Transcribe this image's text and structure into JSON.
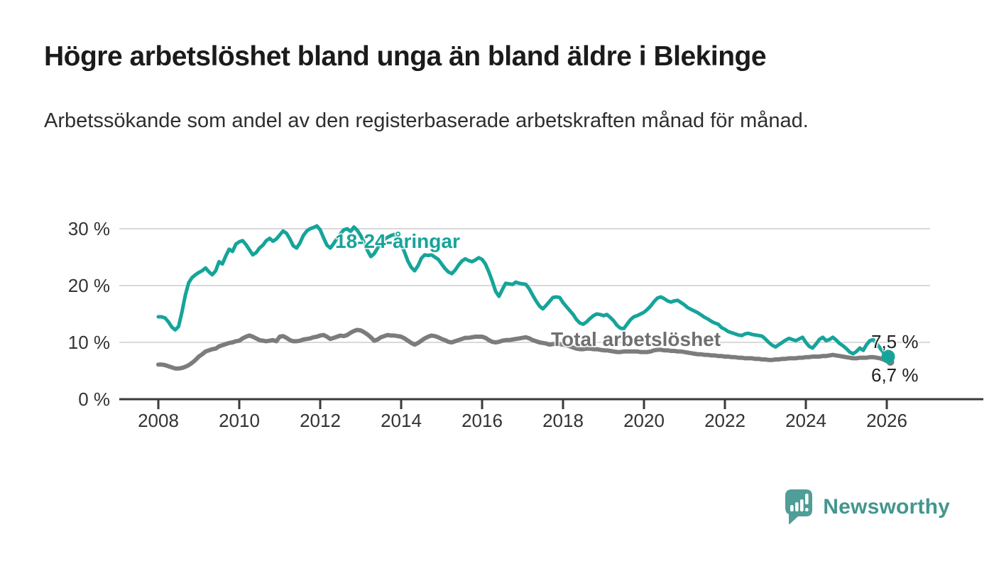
{
  "title": "Högre arbetslöshet bland unga än bland äldre i Blekinge",
  "subtitle": "Arbetssökande som andel av den registerbaserade arbetskraften månad för månad.",
  "branding": {
    "name": "Newsworthy",
    "logo_icon_color": "#4F9E97",
    "logo_text_color": "#43968E"
  },
  "colors": {
    "accent_teal": "#16A49A",
    "line_gray": "#7C7C7C",
    "label_gray": "#6F6F6F",
    "grid": "#D9D9D9",
    "axis": "#3A3A3A",
    "axis_text": "#333333",
    "end_label_text": "#1F1F1F"
  },
  "chart_data": {
    "type": "line",
    "title": "Högre arbetslöshet bland unga än bland äldre i Blekinge",
    "subtitle": "Arbetssökande som andel av den registerbaserade arbetskraften månad för månad.",
    "x_start_year": 2008,
    "months_per_step": 1,
    "x_ticks": [
      2008,
      2010,
      2012,
      2014,
      2016,
      2018,
      2020,
      2022,
      2024,
      2026
    ],
    "x_tick_labels": [
      "2008",
      "2010",
      "2012",
      "2014",
      "2016",
      "2018",
      "2020",
      "2022",
      "2024",
      "2026"
    ],
    "y_ticks": [
      0,
      10,
      20,
      30
    ],
    "y_tick_labels": [
      "0 %",
      "10 %",
      "20 %",
      "30 %"
    ],
    "ylim": [
      0,
      32
    ],
    "grid": "horizontal",
    "legend_position": "inline-labels",
    "series": [
      {
        "name": "18-24-åringar",
        "color": "#16A49A",
        "stroke_width": 5,
        "end_label": "7,5 %",
        "final_value": 7.5,
        "end_dot": true,
        "values": [
          14.5,
          14.5,
          14.3,
          13.6,
          12.7,
          12.2,
          12.8,
          15.3,
          18.3,
          20.5,
          21.4,
          21.9,
          22.3,
          22.6,
          23.1,
          22.4,
          21.9,
          22.6,
          24.2,
          23.8,
          25.2,
          26.4,
          26.0,
          27.3,
          27.7,
          27.9,
          27.2,
          26.3,
          25.4,
          25.8,
          26.6,
          27.1,
          27.9,
          28.3,
          27.8,
          28.2,
          28.9,
          29.6,
          29.2,
          28.2,
          27.0,
          26.6,
          27.5,
          28.8,
          29.6,
          30.0,
          30.2,
          30.5,
          29.8,
          28.4,
          27.1,
          26.6,
          27.4,
          28.3,
          29.1,
          29.8,
          30.0,
          29.5,
          30.3,
          29.7,
          28.8,
          27.6,
          26.2,
          25.1,
          25.6,
          26.6,
          27.4,
          28.1,
          28.5,
          28.8,
          29.0,
          28.4,
          27.3,
          25.9,
          24.3,
          23.2,
          22.6,
          23.5,
          24.8,
          25.4,
          25.3,
          25.4,
          25.0,
          24.6,
          23.8,
          23.0,
          22.4,
          22.1,
          22.7,
          23.6,
          24.3,
          24.7,
          24.4,
          24.2,
          24.5,
          24.9,
          24.6,
          23.8,
          22.4,
          20.8,
          19.0,
          18.1,
          19.3,
          20.4,
          20.3,
          20.2,
          20.6,
          20.4,
          20.3,
          20.2,
          19.4,
          18.3,
          17.3,
          16.4,
          15.9,
          16.5,
          17.2,
          17.9,
          18.0,
          17.9,
          17.0,
          16.3,
          15.6,
          14.9,
          14.0,
          13.4,
          13.2,
          13.6,
          14.2,
          14.7,
          15.0,
          14.9,
          14.7,
          14.9,
          14.4,
          13.8,
          13.0,
          12.5,
          12.4,
          13.2,
          14.0,
          14.5,
          14.7,
          15.0,
          15.3,
          15.8,
          16.4,
          17.2,
          17.8,
          18.0,
          17.7,
          17.3,
          17.1,
          17.3,
          17.4,
          17.0,
          16.6,
          16.1,
          15.8,
          15.5,
          15.2,
          14.8,
          14.4,
          14.1,
          13.7,
          13.4,
          13.2,
          12.6,
          12.3,
          11.9,
          11.7,
          11.5,
          11.3,
          11.2,
          11.5,
          11.6,
          11.4,
          11.3,
          11.2,
          11.1,
          10.6,
          10.0,
          9.5,
          9.2,
          9.6,
          10.0,
          10.4,
          10.7,
          10.5,
          10.3,
          10.6,
          10.9,
          10.0,
          9.3,
          9.0,
          9.7,
          10.5,
          10.9,
          10.3,
          10.5,
          10.9,
          10.4,
          9.8,
          9.4,
          8.9,
          8.3,
          8.0,
          8.4,
          9.0,
          8.6,
          9.6,
          10.3,
          10.5,
          9.8,
          9.0,
          8.2,
          7.5
        ]
      },
      {
        "name": "Total arbetslöshet",
        "color": "#7C7C7C",
        "stroke_width": 6,
        "end_label": "6,7 %",
        "final_value": 6.7,
        "end_dot": false,
        "values": [
          6.1,
          6.1,
          6.0,
          5.8,
          5.6,
          5.4,
          5.4,
          5.5,
          5.7,
          6.0,
          6.4,
          6.9,
          7.5,
          7.9,
          8.4,
          8.6,
          8.8,
          8.9,
          9.3,
          9.5,
          9.7,
          9.9,
          10.0,
          10.2,
          10.3,
          10.7,
          11.0,
          11.2,
          11.0,
          10.7,
          10.4,
          10.3,
          10.2,
          10.3,
          10.4,
          10.2,
          11.0,
          11.1,
          10.8,
          10.4,
          10.2,
          10.2,
          10.3,
          10.5,
          10.6,
          10.7,
          10.9,
          11.0,
          11.2,
          11.3,
          11.0,
          10.6,
          10.8,
          11.0,
          11.2,
          11.1,
          11.3,
          11.7,
          12.0,
          12.2,
          12.1,
          11.8,
          11.4,
          10.9,
          10.3,
          10.5,
          10.9,
          11.1,
          11.3,
          11.2,
          11.2,
          11.1,
          11.0,
          10.7,
          10.3,
          9.9,
          9.6,
          9.9,
          10.3,
          10.7,
          11.0,
          11.2,
          11.1,
          10.9,
          10.6,
          10.4,
          10.1,
          10.0,
          10.2,
          10.4,
          10.6,
          10.8,
          10.8,
          10.9,
          11.0,
          11.0,
          11.0,
          10.8,
          10.4,
          10.1,
          10.0,
          10.1,
          10.3,
          10.4,
          10.4,
          10.5,
          10.6,
          10.7,
          10.8,
          10.9,
          10.7,
          10.4,
          10.2,
          10.0,
          9.9,
          9.8,
          9.6,
          9.7,
          9.8,
          9.7,
          9.6,
          9.5,
          9.3,
          9.1,
          8.9,
          8.8,
          8.8,
          8.9,
          8.9,
          8.8,
          8.8,
          8.7,
          8.6,
          8.6,
          8.5,
          8.4,
          8.3,
          8.3,
          8.4,
          8.4,
          8.4,
          8.4,
          8.4,
          8.3,
          8.3,
          8.3,
          8.4,
          8.6,
          8.7,
          8.7,
          8.6,
          8.6,
          8.5,
          8.5,
          8.4,
          8.4,
          8.3,
          8.2,
          8.1,
          8.0,
          7.9,
          7.9,
          7.8,
          7.8,
          7.7,
          7.7,
          7.6,
          7.6,
          7.5,
          7.5,
          7.4,
          7.4,
          7.3,
          7.3,
          7.2,
          7.2,
          7.2,
          7.1,
          7.1,
          7.0,
          7.0,
          6.9,
          6.9,
          7.0,
          7.0,
          7.1,
          7.1,
          7.2,
          7.2,
          7.2,
          7.3,
          7.3,
          7.4,
          7.4,
          7.5,
          7.5,
          7.5,
          7.6,
          7.6,
          7.7,
          7.8,
          7.7,
          7.6,
          7.5,
          7.4,
          7.3,
          7.2,
          7.2,
          7.3,
          7.3,
          7.3,
          7.4,
          7.4,
          7.3,
          7.2,
          7.0,
          6.7
        ]
      }
    ]
  }
}
